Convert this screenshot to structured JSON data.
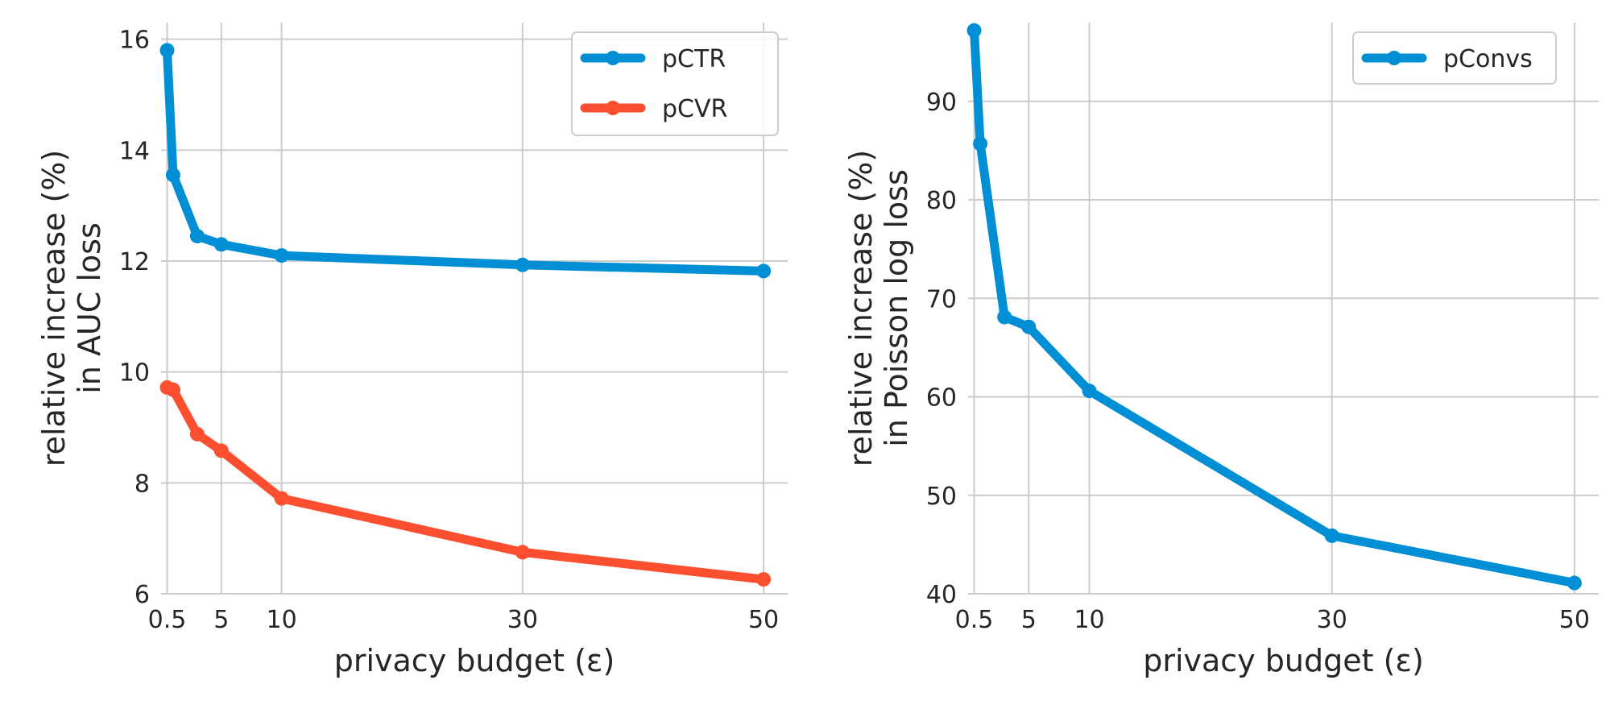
{
  "chart_data": [
    {
      "type": "line",
      "xlabel": "privacy budget (ε)",
      "ylabel_lines": [
        "relative increase (%)",
        "in AUC loss"
      ],
      "x": [
        0.5,
        1,
        3,
        5,
        10,
        30,
        50
      ],
      "xticks": [
        0.5,
        5,
        10,
        30,
        50
      ],
      "xtick_labels": [
        "0.5",
        "5",
        "10",
        "30",
        "50"
      ],
      "xlim": [
        0,
        52
      ],
      "yticks": [
        6,
        8,
        10,
        12,
        14,
        16
      ],
      "ytick_labels": [
        "6",
        "8",
        "10",
        "12",
        "14",
        "16"
      ],
      "ylim": [
        6,
        16.3
      ],
      "grid": true,
      "legend_position": "top-right",
      "series": [
        {
          "name": "pCTR",
          "color": "#008fd5",
          "values": [
            15.8,
            13.55,
            12.45,
            12.3,
            12.1,
            11.93,
            11.82
          ]
        },
        {
          "name": "pCVR",
          "color": "#fc4f30",
          "values": [
            9.72,
            9.68,
            8.88,
            8.58,
            7.72,
            6.75,
            6.26
          ]
        }
      ]
    },
    {
      "type": "line",
      "xlabel": "privacy budget (ε)",
      "ylabel_lines": [
        "relative increase (%)",
        "in Poisson log loss"
      ],
      "x": [
        0.5,
        1,
        3,
        5,
        10,
        30,
        50
      ],
      "xticks": [
        0.5,
        5,
        10,
        30,
        50
      ],
      "xtick_labels": [
        "0.5",
        "5",
        "10",
        "30",
        "50"
      ],
      "xlim": [
        0,
        52
      ],
      "yticks": [
        40,
        50,
        60,
        70,
        80,
        90
      ],
      "ytick_labels": [
        "40",
        "50",
        "60",
        "70",
        "80",
        "90"
      ],
      "ylim": [
        40,
        98
      ],
      "grid": true,
      "legend_position": "top-right",
      "series": [
        {
          "name": "pConvs",
          "color": "#008fd5",
          "values": [
            97.2,
            85.7,
            68.1,
            67.1,
            60.6,
            45.9,
            41.1
          ]
        }
      ]
    }
  ]
}
